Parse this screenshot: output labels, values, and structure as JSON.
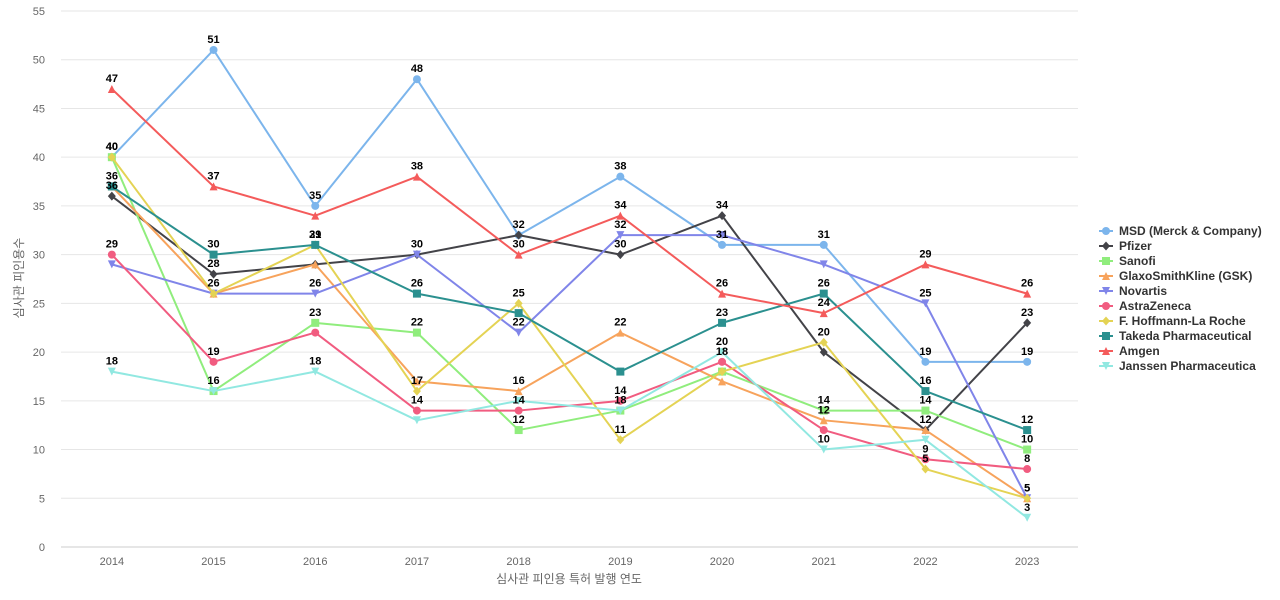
{
  "chart_data": {
    "type": "line",
    "title": "",
    "xlabel": "심사관 피인용 특허 발행 연도",
    "ylabel": "심사관 피인용수",
    "ylim": [
      0,
      55
    ],
    "yticks": [
      0,
      5,
      10,
      15,
      20,
      25,
      30,
      35,
      40,
      45,
      50,
      55
    ],
    "grid": true,
    "legend_position": "right",
    "categories": [
      "2014",
      "2015",
      "2016",
      "2017",
      "2018",
      "2019",
      "2020",
      "2021",
      "2022",
      "2023"
    ],
    "series": [
      {
        "name": "MSD (Merck & Company)",
        "color": "#7cb5ec",
        "marker": "circle",
        "values": [
          40,
          51,
          35,
          48,
          32,
          38,
          31,
          31,
          19,
          19
        ]
      },
      {
        "name": "Pfizer",
        "color": "#434348",
        "marker": "diamond",
        "values": [
          36,
          28,
          29,
          30,
          32,
          30,
          34,
          20,
          12,
          23
        ]
      },
      {
        "name": "Sanofi",
        "color": "#90ed7d",
        "marker": "square",
        "values": [
          40,
          16,
          23,
          22,
          12,
          14,
          18,
          14,
          14,
          10
        ]
      },
      {
        "name": "GlaxoSmithKline (GSK)",
        "color": "#f7a35c",
        "marker": "triangle",
        "values": [
          37,
          26,
          29,
          17,
          16,
          22,
          17,
          13,
          12,
          5
        ]
      },
      {
        "name": "Novartis",
        "color": "#8085e9",
        "marker": "triangle-down",
        "values": [
          29,
          26,
          26,
          30,
          22,
          32,
          32,
          29,
          25,
          5
        ]
      },
      {
        "name": "AstraZeneca",
        "color": "#f15c80",
        "marker": "circle",
        "values": [
          30,
          19,
          22,
          14,
          14,
          15,
          19,
          12,
          9,
          8
        ]
      },
      {
        "name": "F. Hoffmann-La Roche",
        "color": "#e4d354",
        "marker": "diamond",
        "values": [
          40,
          26,
          31,
          16,
          25,
          11,
          18,
          21,
          8,
          5
        ]
      },
      {
        "name": "Takeda Pharmaceutical",
        "color": "#2b908f",
        "marker": "square",
        "values": [
          37,
          30,
          31,
          26,
          24,
          18,
          23,
          26,
          16,
          12
        ]
      },
      {
        "name": "Amgen",
        "color": "#f45b5b",
        "marker": "triangle",
        "values": [
          47,
          37,
          34,
          38,
          30,
          34,
          26,
          24,
          29,
          26
        ]
      },
      {
        "name": "Janssen Pharmaceutica",
        "color": "#91e8e1",
        "marker": "triangle-down",
        "values": [
          18,
          16,
          18,
          13,
          15,
          14,
          20,
          10,
          11,
          3
        ]
      }
    ],
    "data_labels": [
      {
        "series": 0,
        "index": 1,
        "text": "51"
      },
      {
        "series": 0,
        "index": 2,
        "text": "35"
      },
      {
        "series": 0,
        "index": 3,
        "text": "48"
      },
      {
        "series": 0,
        "index": 4,
        "text": "32"
      },
      {
        "series": 0,
        "index": 5,
        "text": "38"
      },
      {
        "series": 0,
        "index": 6,
        "text": "31"
      },
      {
        "series": 0,
        "index": 7,
        "text": "31"
      },
      {
        "series": 0,
        "index": 8,
        "text": "19"
      },
      {
        "series": 0,
        "index": 9,
        "text": "19"
      },
      {
        "series": 1,
        "index": 0,
        "text": "36"
      },
      {
        "series": 1,
        "index": 1,
        "text": "28"
      },
      {
        "series": 1,
        "index": 3,
        "text": "30"
      },
      {
        "series": 1,
        "index": 5,
        "text": "30"
      },
      {
        "series": 1,
        "index": 6,
        "text": "34"
      },
      {
        "series": 1,
        "index": 9,
        "text": "23"
      },
      {
        "series": 2,
        "index": 1,
        "text": "16"
      },
      {
        "series": 2,
        "index": 2,
        "text": "23"
      },
      {
        "series": 2,
        "index": 3,
        "text": "22"
      },
      {
        "series": 2,
        "index": 4,
        "text": "12"
      },
      {
        "series": 2,
        "index": 7,
        "text": "14"
      },
      {
        "series": 2,
        "index": 8,
        "text": "14"
      },
      {
        "series": 2,
        "index": 9,
        "text": "10"
      },
      {
        "series": 3,
        "index": 4,
        "text": "16"
      },
      {
        "series": 3,
        "index": 5,
        "text": "22"
      },
      {
        "series": 3,
        "index": 7,
        "text": "12"
      },
      {
        "series": 3,
        "index": 8,
        "text": "12"
      },
      {
        "series": 4,
        "index": 2,
        "text": "26"
      },
      {
        "series": 4,
        "index": 4,
        "text": "22"
      },
      {
        "series": 4,
        "index": 5,
        "text": "32"
      },
      {
        "series": 4,
        "index": 8,
        "text": "25"
      },
      {
        "series": 4,
        "index": 9,
        "text": "5"
      },
      {
        "series": 5,
        "index": 1,
        "text": "19"
      },
      {
        "series": 5,
        "index": 3,
        "text": "14"
      },
      {
        "series": 5,
        "index": 4,
        "text": "14"
      },
      {
        "series": 5,
        "index": 5,
        "text": "14"
      },
      {
        "series": 5,
        "index": 6,
        "text": "18"
      },
      {
        "series": 5,
        "index": 8,
        "text": "9"
      },
      {
        "series": 5,
        "index": 9,
        "text": "8"
      },
      {
        "series": 6,
        "index": 0,
        "text": "40"
      },
      {
        "series": 6,
        "index": 1,
        "text": "26"
      },
      {
        "series": 6,
        "index": 2,
        "text": "29"
      },
      {
        "series": 6,
        "index": 3,
        "text": "17"
      },
      {
        "series": 6,
        "index": 4,
        "text": "25"
      },
      {
        "series": 6,
        "index": 5,
        "text": "11"
      },
      {
        "series": 6,
        "index": 7,
        "text": "20"
      },
      {
        "series": 6,
        "index": 9,
        "text": "5"
      },
      {
        "series": 7,
        "index": 0,
        "text": "36"
      },
      {
        "series": 7,
        "index": 1,
        "text": "30"
      },
      {
        "series": 7,
        "index": 2,
        "text": "31"
      },
      {
        "series": 7,
        "index": 3,
        "text": "26"
      },
      {
        "series": 7,
        "index": 6,
        "text": "23"
      },
      {
        "series": 7,
        "index": 7,
        "text": "26"
      },
      {
        "series": 7,
        "index": 8,
        "text": "16"
      },
      {
        "series": 7,
        "index": 9,
        "text": "12"
      },
      {
        "series": 8,
        "index": 0,
        "text": "47"
      },
      {
        "series": 8,
        "index": 1,
        "text": "37"
      },
      {
        "series": 8,
        "index": 3,
        "text": "38"
      },
      {
        "series": 8,
        "index": 4,
        "text": "30"
      },
      {
        "series": 8,
        "index": 5,
        "text": "34"
      },
      {
        "series": 8,
        "index": 6,
        "text": "26"
      },
      {
        "series": 8,
        "index": 7,
        "text": "24"
      },
      {
        "series": 8,
        "index": 8,
        "text": "29"
      },
      {
        "series": 8,
        "index": 9,
        "text": "26"
      },
      {
        "series": 9,
        "index": 0,
        "text": "18"
      },
      {
        "series": 9,
        "index": 2,
        "text": "18"
      },
      {
        "series": 9,
        "index": 5,
        "text": "18"
      },
      {
        "series": 9,
        "index": 6,
        "text": "20"
      },
      {
        "series": 9,
        "index": 7,
        "text": "10"
      },
      {
        "series": 9,
        "index": 9,
        "text": "3"
      },
      {
        "series": 0,
        "index": 0,
        "text": "40"
      },
      {
        "series": 5,
        "index": 0,
        "text": "29"
      },
      {
        "series": 6,
        "index": 8,
        "text": "5"
      }
    ]
  }
}
